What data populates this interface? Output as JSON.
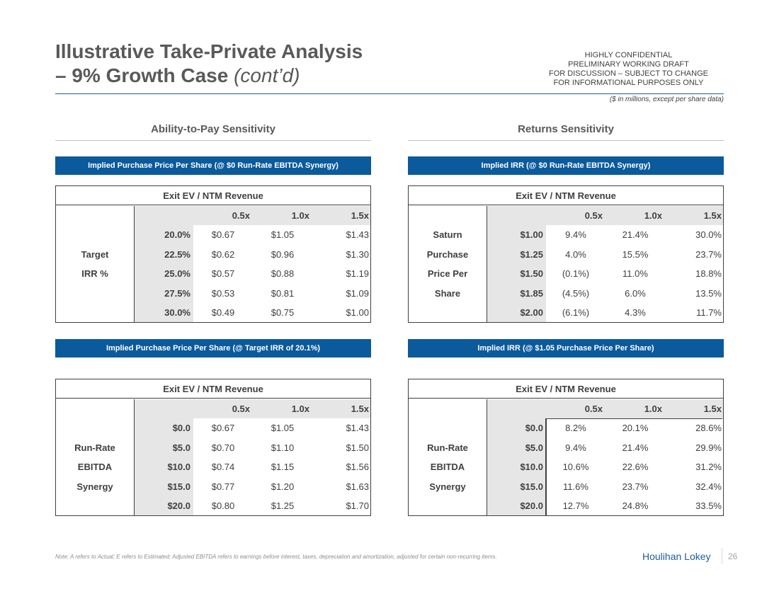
{
  "header": {
    "title_line1": "Illustrative Take-Private Analysis",
    "title_line2": "– 9% Growth Case",
    "title_suffix": "(cont’d)",
    "confidential": [
      "HIGHLY CONFIDENTIAL",
      "PRELIMINARY WORKING DRAFT",
      "FOR DISCUSSION – SUBJECT TO CHANGE",
      "FOR INFORMATIONAL PURPOSES ONLY"
    ],
    "units_note": "($ in millions, except per share data)"
  },
  "sections": [
    "Ability-to-Pay Sensitivity",
    "Returns Sensitivity"
  ],
  "tables": [
    {
      "banner": "Implied Purchase Price Per Share (@ $0 Run-Rate EBITDA Synergy)",
      "column_header": "Exit EV / NTM Revenue",
      "columns": [
        "0.5x",
        "1.0x",
        "1.5x"
      ],
      "row_label": [
        "Target",
        "IRR %"
      ],
      "rows": [
        {
          "label": "20.0%",
          "values": [
            "$0.67",
            "$1.05",
            "$1.43"
          ]
        },
        {
          "label": "22.5%",
          "values": [
            "$0.62",
            "$0.96",
            "$1.30"
          ]
        },
        {
          "label": "25.0%",
          "values": [
            "$0.57",
            "$0.88",
            "$1.19"
          ]
        },
        {
          "label": "27.5%",
          "values": [
            "$0.53",
            "$0.81",
            "$1.09"
          ]
        },
        {
          "label": "30.0%",
          "values": [
            "$0.49",
            "$0.75",
            "$1.00"
          ]
        }
      ]
    },
    {
      "banner": "Implied IRR (@ $0 Run-Rate EBITDA Synergy)",
      "column_header": "Exit EV / NTM Revenue",
      "columns": [
        "0.5x",
        "1.0x",
        "1.5x"
      ],
      "row_label": [
        "Saturn",
        "Purchase",
        "Price Per",
        "Share"
      ],
      "rows": [
        {
          "label": "$1.00",
          "values": [
            "9.4%",
            "21.4%",
            "30.0%"
          ]
        },
        {
          "label": "$1.25",
          "values": [
            "4.0%",
            "15.5%",
            "23.7%"
          ]
        },
        {
          "label": "$1.50",
          "values": [
            "(0.1%)",
            "11.0%",
            "18.8%"
          ]
        },
        {
          "label": "$1.85",
          "values": [
            "(4.5%)",
            "6.0%",
            "13.5%"
          ]
        },
        {
          "label": "$2.00",
          "values": [
            "(6.1%)",
            "4.3%",
            "11.7%"
          ]
        }
      ]
    },
    {
      "banner": "Implied Purchase Price Per Share (@ Target IRR of 20.1%)",
      "column_header": "Exit EV / NTM Revenue",
      "columns": [
        "0.5x",
        "1.0x",
        "1.5x"
      ],
      "row_label": [
        "Run-Rate",
        "EBITDA",
        "Synergy"
      ],
      "rows": [
        {
          "label": "$0.0",
          "values": [
            "$0.67",
            "$1.05",
            "$1.43"
          ]
        },
        {
          "label": "$5.0",
          "values": [
            "$0.70",
            "$1.10",
            "$1.50"
          ]
        },
        {
          "label": "$10.0",
          "values": [
            "$0.74",
            "$1.15",
            "$1.56"
          ]
        },
        {
          "label": "$15.0",
          "values": [
            "$0.77",
            "$1.20",
            "$1.63"
          ]
        },
        {
          "label": "$20.0",
          "values": [
            "$0.80",
            "$1.25",
            "$1.70"
          ]
        }
      ]
    },
    {
      "banner": "Implied IRR (@ $1.05 Purchase Price Per Share)",
      "column_header": "Exit EV / NTM Revenue",
      "columns": [
        "0.5x",
        "1.0x",
        "1.5x"
      ],
      "row_label": [
        "Run-Rate",
        "EBITDA",
        "Synergy"
      ],
      "rows": [
        {
          "label": "$0.0",
          "values": [
            "8.2%",
            "20.1%",
            "28.6%"
          ]
        },
        {
          "label": "$5.0",
          "values": [
            "9.4%",
            "21.4%",
            "29.9%"
          ]
        },
        {
          "label": "$10.0",
          "values": [
            "10.6%",
            "22.6%",
            "31.2%"
          ]
        },
        {
          "label": "$15.0",
          "values": [
            "11.6%",
            "23.7%",
            "32.4%"
          ]
        },
        {
          "label": "$20.0",
          "values": [
            "12.7%",
            "24.8%",
            "33.5%"
          ]
        }
      ]
    }
  ],
  "footer": {
    "note": "Note: A refers to Actual; E refers to Estimated; Adjusted EBITDA refers to earnings before interest, taxes, depreciation and amortization, adjusted for certain non-recurring items.",
    "brand": "Houlihan Lokey",
    "page": "26"
  }
}
